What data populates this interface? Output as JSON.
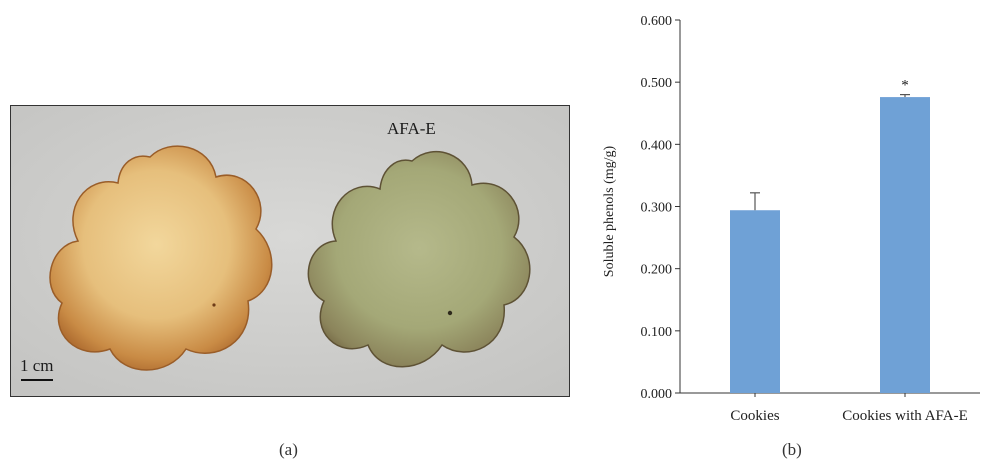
{
  "panel_a": {
    "caption": "(a)",
    "labels": {
      "sample": "AFA-E",
      "scale": "1 cm"
    },
    "colors": {
      "background": "#cfcfcd",
      "plain_cookie": "#e9c585",
      "afa_cookie": "#a9ae7e"
    }
  },
  "panel_b": {
    "caption": "(b)"
  },
  "chart_data": {
    "type": "bar",
    "categories": [
      "Cookies",
      "Cookies with AFA-E"
    ],
    "values": [
      0.294,
      0.476
    ],
    "errors": [
      0.028,
      0.004
    ],
    "significance": [
      "",
      "*"
    ],
    "ylabel": "Soluble phenols (mg/g)",
    "xlabel": "",
    "ylim": [
      0,
      0.6
    ],
    "yticks": [
      "0.000",
      "0.100",
      "0.200",
      "0.300",
      "0.400",
      "0.500",
      "0.600"
    ],
    "bar_color": "#6fa1d6",
    "grid": false
  }
}
